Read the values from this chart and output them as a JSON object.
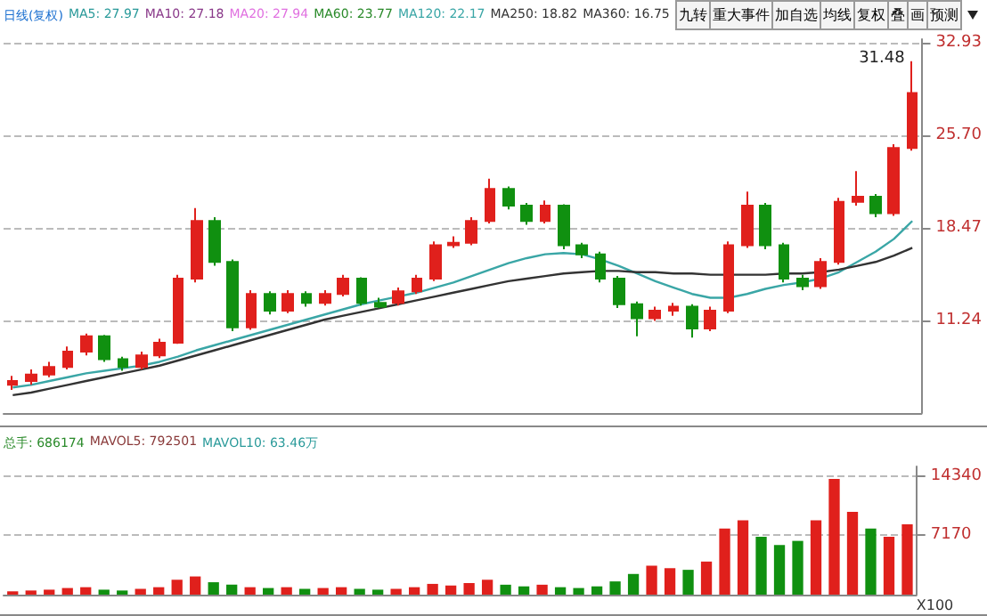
{
  "chart_data": [
    {
      "type": "candlestick",
      "title": "日线(复权)",
      "categories": [
        null,
        null,
        null,
        null,
        null,
        null,
        null,
        null,
        null,
        null,
        null,
        null,
        null,
        null,
        null,
        null,
        null,
        null,
        null,
        null,
        null,
        null,
        null,
        null,
        null,
        null,
        null,
        null,
        null,
        null,
        null,
        null,
        null,
        null,
        null,
        null,
        null,
        null,
        null,
        null,
        null,
        null,
        null,
        null,
        null,
        null,
        null,
        null,
        null,
        null
      ],
      "ohlc": [
        [
          6.2,
          6.9,
          5.8,
          6.5
        ],
        [
          6.5,
          7.4,
          6.2,
          7.0
        ],
        [
          7.0,
          8.0,
          6.8,
          7.6
        ],
        [
          7.6,
          9.2,
          7.4,
          8.8
        ],
        [
          8.8,
          10.2,
          8.5,
          10.0
        ],
        [
          10.0,
          10.1,
          8.0,
          8.2
        ],
        [
          8.2,
          8.4,
          7.3,
          7.6
        ],
        [
          7.6,
          8.8,
          7.4,
          8.5
        ],
        [
          8.5,
          9.8,
          8.3,
          9.5
        ],
        [
          9.5,
          14.8,
          9.4,
          14.5
        ],
        [
          14.5,
          20.0,
          14.2,
          19.0
        ],
        [
          19.0,
          19.3,
          15.5,
          15.8
        ],
        [
          15.8,
          16.0,
          10.4,
          10.7
        ],
        [
          10.7,
          13.6,
          10.5,
          13.3
        ],
        [
          13.3,
          13.5,
          11.7,
          12.0
        ],
        [
          12.0,
          13.6,
          11.8,
          13.3
        ],
        [
          13.3,
          13.5,
          12.3,
          12.6
        ],
        [
          12.6,
          13.6,
          12.4,
          13.3
        ],
        [
          13.3,
          14.8,
          13.1,
          14.5
        ],
        [
          14.5,
          14.6,
          12.4,
          12.6
        ],
        [
          12.6,
          13.0,
          12.2,
          12.3
        ],
        [
          12.6,
          13.8,
          12.4,
          13.5
        ],
        [
          13.5,
          14.8,
          13.3,
          14.5
        ],
        [
          14.5,
          17.4,
          14.3,
          17.1
        ],
        [
          17.1,
          17.8,
          16.9,
          17.3
        ],
        [
          17.3,
          19.3,
          17.1,
          19.0
        ],
        [
          19.0,
          22.3,
          18.8,
          21.5
        ],
        [
          21.5,
          21.7,
          19.9,
          20.2
        ],
        [
          20.2,
          20.4,
          18.7,
          19.0
        ],
        [
          19.0,
          20.6,
          18.8,
          20.2
        ],
        [
          20.2,
          20.3,
          16.8,
          17.1
        ],
        [
          17.1,
          17.3,
          16.1,
          16.4
        ],
        [
          16.4,
          16.6,
          14.2,
          14.5
        ],
        [
          14.5,
          14.7,
          12.2,
          12.5
        ],
        [
          12.5,
          12.7,
          10.0,
          11.4
        ],
        [
          11.4,
          12.3,
          11.2,
          12.0
        ],
        [
          12.0,
          12.6,
          11.6,
          12.3
        ],
        [
          12.3,
          12.5,
          9.9,
          10.6
        ],
        [
          10.6,
          12.3,
          10.4,
          12.0
        ],
        [
          12.0,
          17.4,
          11.8,
          17.1
        ],
        [
          17.1,
          21.3,
          16.9,
          20.2
        ],
        [
          20.2,
          20.4,
          16.8,
          17.1
        ],
        [
          17.1,
          17.3,
          14.2,
          14.5
        ],
        [
          14.5,
          14.8,
          13.6,
          13.9
        ],
        [
          13.9,
          16.1,
          13.7,
          15.8
        ],
        [
          15.8,
          20.8,
          15.6,
          20.5
        ],
        [
          20.5,
          22.9,
          20.2,
          20.9
        ],
        [
          20.9,
          21.1,
          19.3,
          19.6
        ],
        [
          19.6,
          25.0,
          19.4,
          24.7
        ],
        [
          24.7,
          31.48,
          24.5,
          29.0
        ]
      ],
      "colors": [
        "#e0201c",
        "#e0201c",
        "#e0201c",
        "#e0201c",
        "#e0201c",
        "#109010",
        "#109010",
        "#e0201c",
        "#e0201c",
        "#e0201c",
        "#e0201c",
        "#109010",
        "#109010",
        "#e0201c",
        "#109010",
        "#e0201c",
        "#109010",
        "#e0201c",
        "#e0201c",
        "#109010",
        "#109010",
        "#e0201c",
        "#e0201c",
        "#e0201c",
        "#e0201c",
        "#e0201c",
        "#e0201c",
        "#109010",
        "#109010",
        "#e0201c",
        "#109010",
        "#109010",
        "#109010",
        "#109010",
        "#109010",
        "#e0201c",
        "#e0201c",
        "#109010",
        "#e0201c",
        "#e0201c",
        "#e0201c",
        "#109010",
        "#109010",
        "#109010",
        "#e0201c",
        "#e0201c",
        "#e0201c",
        "#109010",
        "#e0201c",
        "#e0201c"
      ],
      "series": [
        {
          "type": "line",
          "color": "#3aa6a6",
          "values": [
            6.0,
            6.2,
            6.5,
            6.8,
            7.1,
            7.3,
            7.5,
            7.7,
            8.0,
            8.4,
            8.9,
            9.3,
            9.7,
            10.1,
            10.5,
            10.9,
            11.3,
            11.7,
            12.1,
            12.5,
            12.8,
            13.1,
            13.4,
            13.8,
            14.2,
            14.7,
            15.2,
            15.7,
            16.1,
            16.4,
            16.5,
            16.4,
            16.0,
            15.5,
            14.9,
            14.3,
            13.8,
            13.3,
            13.0,
            13.0,
            13.3,
            13.7,
            14.0,
            14.2,
            14.5,
            15.0,
            15.8,
            16.6,
            17.6,
            19.0
          ]
        },
        {
          "type": "line",
          "color": "#333333",
          "values": [
            5.4,
            5.6,
            5.9,
            6.2,
            6.5,
            6.8,
            7.1,
            7.4,
            7.7,
            8.1,
            8.5,
            8.9,
            9.3,
            9.7,
            10.1,
            10.5,
            10.9,
            11.3,
            11.6,
            11.9,
            12.2,
            12.5,
            12.8,
            13.1,
            13.4,
            13.7,
            14.0,
            14.3,
            14.5,
            14.7,
            14.9,
            15.0,
            15.1,
            15.1,
            15.0,
            15.0,
            14.9,
            14.9,
            14.8,
            14.8,
            14.8,
            14.8,
            14.9,
            14.9,
            15.0,
            15.2,
            15.5,
            15.8,
            16.3,
            16.9
          ]
        }
      ],
      "ylim": [
        4,
        33.2
      ],
      "yticks": [
        {
          "value": 11.24,
          "label": "11.24"
        },
        {
          "value": 18.47,
          "label": "18.47"
        },
        {
          "value": 25.7,
          "label": "25.70"
        },
        {
          "value": 32.93,
          "label": "32.93"
        }
      ],
      "grid": "y",
      "annotations": [
        "MA5: 27.97",
        "MA10: 27.18",
        "MA20: 27.94",
        "MA60: 23.77",
        "MA120: 22.17",
        "MA250: 18.82",
        "MA360: 16.75",
        "九转",
        "重大事件",
        "加自选",
        "均线",
        "复权",
        "叠",
        "画",
        "预测",
        "31.48"
      ]
    },
    {
      "type": "bar",
      "categories": [
        null,
        null,
        null,
        null,
        null,
        null,
        null,
        null,
        null,
        null,
        null,
        null,
        null,
        null,
        null,
        null,
        null,
        null,
        null,
        null,
        null,
        null,
        null,
        null,
        null,
        null,
        null,
        null,
        null,
        null,
        null,
        null,
        null,
        null,
        null,
        null,
        null,
        null,
        null,
        null,
        null,
        null,
        null,
        null,
        null,
        null,
        null,
        null,
        null,
        null
      ],
      "values": [
        400,
        500,
        600,
        800,
        900,
        600,
        500,
        700,
        900,
        1800,
        2200,
        1500,
        1200,
        900,
        800,
        900,
        700,
        800,
        900,
        700,
        600,
        700,
        900,
        1300,
        1100,
        1400,
        1800,
        1200,
        1000,
        1200,
        900,
        800,
        1000,
        1600,
        2500,
        3500,
        3200,
        3000,
        4000,
        8000,
        9000,
        7000,
        6000,
        6500,
        9000,
        14000,
        10000,
        8000,
        7000,
        8500
      ],
      "colors": [
        "#e0201c",
        "#e0201c",
        "#e0201c",
        "#e0201c",
        "#e0201c",
        "#109010",
        "#109010",
        "#e0201c",
        "#e0201c",
        "#e0201c",
        "#e0201c",
        "#109010",
        "#109010",
        "#e0201c",
        "#109010",
        "#e0201c",
        "#109010",
        "#e0201c",
        "#e0201c",
        "#109010",
        "#109010",
        "#e0201c",
        "#e0201c",
        "#e0201c",
        "#e0201c",
        "#e0201c",
        "#e0201c",
        "#109010",
        "#109010",
        "#e0201c",
        "#109010",
        "#109010",
        "#109010",
        "#109010",
        "#109010",
        "#e0201c",
        "#e0201c",
        "#109010",
        "#e0201c",
        "#e0201c",
        "#e0201c",
        "#109010",
        "#109010",
        "#109010",
        "#e0201c",
        "#e0201c",
        "#e0201c",
        "#109010",
        "#e0201c",
        "#e0201c"
      ],
      "ylim": [
        0,
        15500
      ],
      "yticks": [
        7170,
        14340
      ],
      "ylabel": "X100",
      "grid": "y",
      "annotations": [
        "总手: 686174",
        "MAVOL5: 792501",
        "MAVOL10: 63.46万"
      ]
    }
  ]
}
